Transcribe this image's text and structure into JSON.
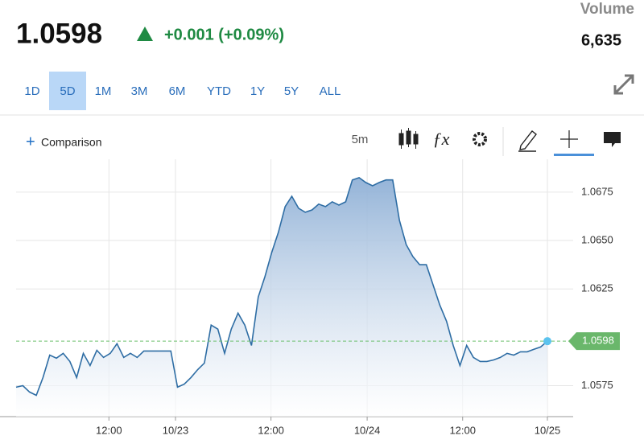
{
  "quote": {
    "price": 1.0598,
    "change": "+0.001 (+0.09%)",
    "volume_label": "Volume",
    "volume": "6,635"
  },
  "ranges": [
    "1D",
    "5D",
    "1M",
    "3M",
    "6M",
    "YTD",
    "1Y",
    "5Y",
    "ALL"
  ],
  "selected_range": "5D",
  "toolbar": {
    "comparison": "Comparison",
    "interval": "5m"
  },
  "chart_data": {
    "type": "area",
    "color": "#2e6da4",
    "grid": true,
    "values": [
      1.05742,
      1.0575,
      1.05717,
      1.057,
      1.05792,
      1.05908,
      1.05892,
      1.05917,
      1.05875,
      1.05792,
      1.05917,
      1.05854,
      1.05933,
      1.05896,
      1.05917,
      1.05967,
      1.05896,
      1.05917,
      1.05896,
      1.05929,
      1.05929,
      1.05929,
      1.05929,
      1.05929,
      1.05742,
      1.05758,
      1.05792,
      1.05833,
      1.05867,
      1.06063,
      1.06042,
      1.05917,
      1.06042,
      1.06125,
      1.06063,
      1.05958,
      1.06208,
      1.06313,
      1.06438,
      1.06542,
      1.06675,
      1.06729,
      1.06667,
      1.06646,
      1.06658,
      1.06688,
      1.06675,
      1.067,
      1.06683,
      1.067,
      1.06813,
      1.06825,
      1.068,
      1.06783,
      1.068,
      1.06813,
      1.06813,
      1.06604,
      1.06479,
      1.06417,
      1.06375,
      1.06375,
      1.06271,
      1.06167,
      1.06083,
      1.05958,
      1.05854,
      1.05958,
      1.05896,
      1.05875,
      1.05875,
      1.05883,
      1.05896,
      1.05917,
      1.05908,
      1.05925,
      1.05925,
      1.05938,
      1.0595,
      1.0598
    ],
    "xlim": [
      0,
      79
    ],
    "ylim": [
      1.0559,
      1.0692
    ],
    "xticks": [
      {
        "value": 13.8,
        "label": "12:00"
      },
      {
        "value": 23.7,
        "label": "10/23"
      },
      {
        "value": 37.9,
        "label": "12:00"
      },
      {
        "value": 52.2,
        "label": "10/24"
      },
      {
        "value": 66.4,
        "label": "12:00"
      },
      {
        "value": 79,
        "label": "10/25"
      }
    ],
    "yticks": [
      1.0575,
      {
        "value": 1.0625,
        "label": "1.0625"
      },
      {
        "value": 1.065,
        "label": "1.0650"
      },
      1.0675
    ]
  }
}
